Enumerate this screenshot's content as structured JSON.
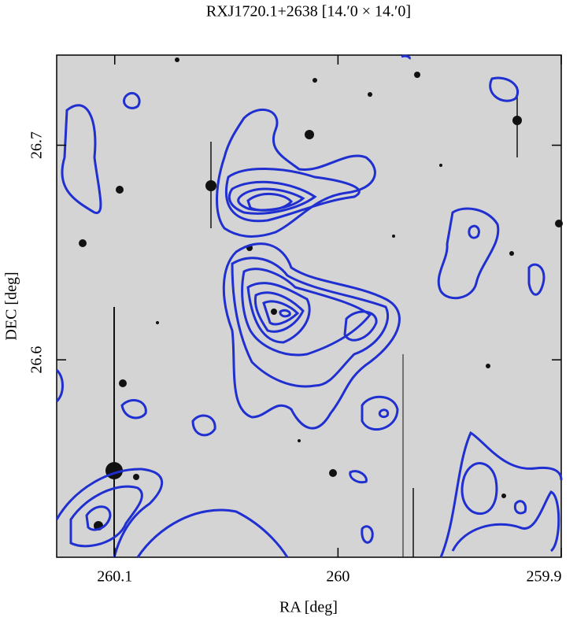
{
  "chart_data": {
    "type": "image_contour",
    "title": "RXJ1720.1+2638  [14.′0 × 14.′0]",
    "x_label": "RA [deg]",
    "y_label": "DEC [deg]",
    "xlim": [
      260.126,
      259.9
    ],
    "ylim": [
      26.508,
      26.742
    ],
    "xticks": [
      260.1,
      260,
      259.9
    ],
    "yticks": [
      26.7,
      26.6
    ],
    "contour_color": "#1f2fd0"
  }
}
